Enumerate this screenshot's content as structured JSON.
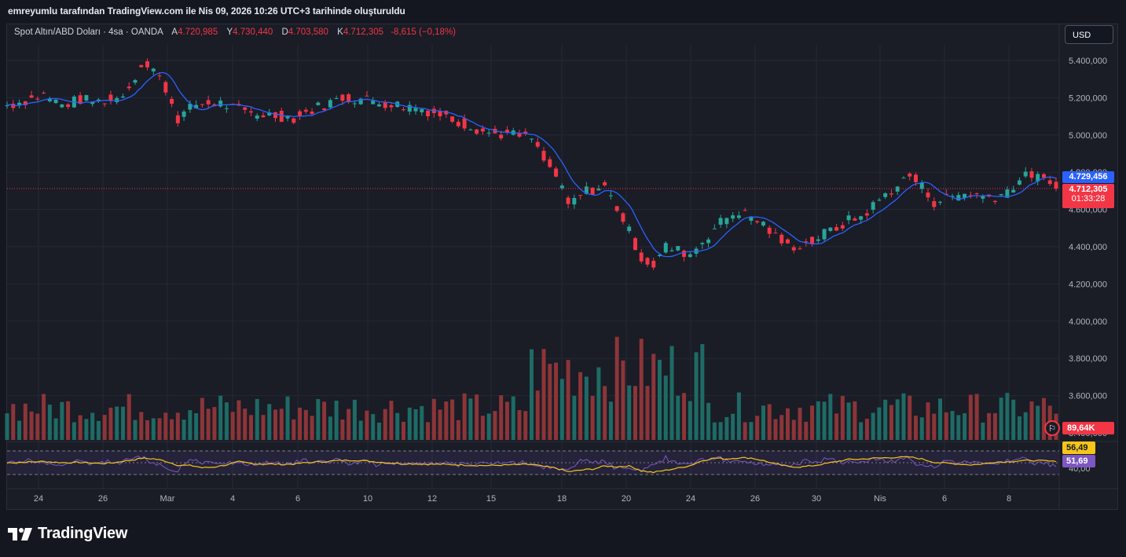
{
  "header": {
    "caption": "emreyumlu tarafından TradingView.com ile Nis 09, 2026 10:26 UTC+3 tarihinde oluşturuldu"
  },
  "legend": {
    "symbol": "Spot Altın/ABD Doları · 4sa · OANDA",
    "open_label": "A",
    "open": "4.720,985",
    "high_label": "Y",
    "high": "4.730,440",
    "low_label": "D",
    "low": "4.703,580",
    "close_label": "K",
    "close": "4.712,305",
    "change": "-8,615 (−0,18%)"
  },
  "currency": "USD",
  "price_tags": {
    "ma_value": "4.729,456",
    "last_price": "4.712,305",
    "countdown": "01:33:28",
    "volume": "89,64K",
    "rsi_ma": "56,49",
    "rsi": "51,69"
  },
  "brand": {
    "name": "TradingView",
    "icon": "tradingview-logo-icon"
  },
  "colors": {
    "up": "#26a69a",
    "down": "#f23645",
    "vol_up": "#1e6b65",
    "vol_down": "#8c3538",
    "ma": "#2962ff",
    "rsi": "#7e57c2",
    "rsi_ma": "#f5c518",
    "background": "#1a1c26",
    "grid": "#252836"
  },
  "chart_data": {
    "type": "candlestick",
    "symbol": "XAUUSD",
    "interval": "4h",
    "y_ticks": [
      "5.400,000",
      "5.200,000",
      "5.000,000",
      "4.800,000",
      "4.600,000",
      "4.400,000",
      "4.200,000",
      "4.000,000",
      "3.800,000",
      "3.600,000",
      "3.400,000"
    ],
    "y_range": [
      3380,
      5470
    ],
    "x_ticks": [
      "24",
      "26",
      "Mar",
      "4",
      "6",
      "10",
      "12",
      "15",
      "18",
      "20",
      "24",
      "26",
      "30",
      "Nis",
      "6",
      "8"
    ],
    "price_anchors": [
      [
        0,
        5160
      ],
      [
        6,
        5185
      ],
      [
        12,
        5215
      ],
      [
        18,
        5160
      ],
      [
        24,
        5190
      ],
      [
        30,
        5180
      ],
      [
        36,
        5195
      ],
      [
        40,
        5260
      ],
      [
        44,
        5380
      ],
      [
        48,
        5350
      ],
      [
        52,
        5250
      ],
      [
        56,
        5090
      ],
      [
        62,
        5165
      ],
      [
        70,
        5170
      ],
      [
        78,
        5120
      ],
      [
        86,
        5110
      ],
      [
        94,
        5090
      ],
      [
        102,
        5150
      ],
      [
        110,
        5200
      ],
      [
        118,
        5190
      ],
      [
        126,
        5165
      ],
      [
        134,
        5150
      ],
      [
        142,
        5110
      ],
      [
        150,
        5060
      ],
      [
        158,
        5010
      ],
      [
        166,
        5000
      ],
      [
        172,
        4980
      ],
      [
        176,
        4860
      ],
      [
        180,
        4780
      ],
      [
        184,
        4620
      ],
      [
        190,
        4700
      ],
      [
        196,
        4720
      ],
      [
        200,
        4610
      ],
      [
        204,
        4480
      ],
      [
        208,
        4340
      ],
      [
        212,
        4300
      ],
      [
        216,
        4400
      ],
      [
        220,
        4380
      ],
      [
        224,
        4360
      ],
      [
        228,
        4430
      ],
      [
        232,
        4500
      ],
      [
        236,
        4560
      ],
      [
        240,
        4590
      ],
      [
        244,
        4560
      ],
      [
        248,
        4520
      ],
      [
        252,
        4450
      ],
      [
        256,
        4400
      ],
      [
        260,
        4410
      ],
      [
        264,
        4430
      ],
      [
        268,
        4470
      ],
      [
        272,
        4500
      ],
      [
        276,
        4540
      ],
      [
        280,
        4560
      ],
      [
        284,
        4620
      ],
      [
        288,
        4680
      ],
      [
        292,
        4730
      ],
      [
        296,
        4780
      ],
      [
        300,
        4720
      ],
      [
        304,
        4640
      ],
      [
        308,
        4660
      ],
      [
        312,
        4680
      ],
      [
        316,
        4690
      ],
      [
        320,
        4670
      ],
      [
        324,
        4670
      ],
      [
        328,
        4700
      ],
      [
        332,
        4760
      ],
      [
        336,
        4790
      ],
      [
        340,
        4750
      ],
      [
        344,
        4715
      ]
    ],
    "indicators": {
      "ma": "moving average overlay",
      "volume": "volume histogram",
      "rsi": {
        "levels": [
          70,
          50,
          30
        ],
        "bottom_label": "40,00"
      }
    }
  }
}
